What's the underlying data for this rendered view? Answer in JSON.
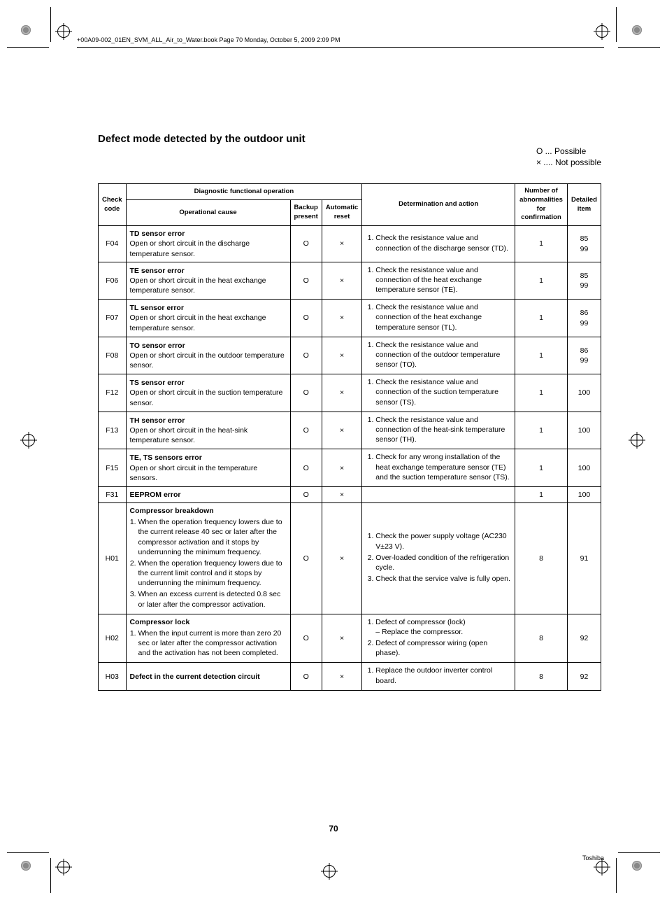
{
  "header_note": "+00A09-002_01EN_SVM_ALL_Air_to_Water.book  Page 70  Monday, October 5, 2009  2:09 PM",
  "title": "Defect mode detected by the outdoor unit",
  "legend": {
    "possible": "O ... Possible",
    "not_possible": "× .... Not possible"
  },
  "headers": {
    "check_code": "Check code",
    "diag": "Diagnostic functional operation",
    "op_cause": "Operational cause",
    "backup": "Backup present",
    "autoreset": "Automatic reset",
    "determination": "Determination and action",
    "abn": "Number of abnormalities for confirmation",
    "detailed": "Detailed item"
  },
  "rows": [
    {
      "code": "F04",
      "cause_title": "TD sensor error",
      "cause_body": "Open or short circuit in the discharge temperature sensor.",
      "backup": "O",
      "autoreset": "×",
      "actions": [
        "Check the resistance value and connection of the discharge sensor (TD)."
      ],
      "abn": "1",
      "item": "85\n99"
    },
    {
      "code": "F06",
      "cause_title": "TE sensor error",
      "cause_body": "Open or short circuit in the heat exchange temperature sensor.",
      "backup": "O",
      "autoreset": "×",
      "actions": [
        "Check the resistance value and connection of the heat exchange temperature sensor (TE)."
      ],
      "abn": "1",
      "item": "85\n99"
    },
    {
      "code": "F07",
      "cause_title": "TL sensor error",
      "cause_body": "Open or short circuit in the heat exchange temperature sensor.",
      "backup": "O",
      "autoreset": "×",
      "actions": [
        "Check the resistance value and connection of the heat exchange temperature sensor (TL)."
      ],
      "abn": "1",
      "item": "86\n99"
    },
    {
      "code": "F08",
      "cause_title": "TO sensor error",
      "cause_body": "Open or short circuit in the outdoor temperature sensor.",
      "backup": "O",
      "autoreset": "×",
      "actions": [
        "Check the resistance value and connection of the outdoor temperature sensor (TO)."
      ],
      "abn": "1",
      "item": "86\n99"
    },
    {
      "code": "F12",
      "cause_title": "TS sensor error",
      "cause_body": "Open or short circuit in the suction temperature sensor.",
      "backup": "O",
      "autoreset": "×",
      "actions": [
        "Check the resistance value and connection of the suction temperature sensor (TS)."
      ],
      "abn": "1",
      "item": "100"
    },
    {
      "code": "F13",
      "cause_title": "TH sensor error",
      "cause_body": "Open or short circuit in the heat-sink temperature sensor.",
      "backup": "O",
      "autoreset": "×",
      "actions": [
        "Check the resistance value and connection of the heat-sink temperature sensor (TH)."
      ],
      "abn": "1",
      "item": "100"
    },
    {
      "code": "F15",
      "cause_title": "TE, TS sensors error",
      "cause_body": "Open or short circuit in the temperature sensors.",
      "backup": "O",
      "autoreset": "×",
      "actions": [
        "Check for any wrong installation of the heat exchange temperature sensor (TE) and the suction temperature sensor (TS)."
      ],
      "abn": "1",
      "item": "100"
    },
    {
      "code": "F31",
      "cause_title": "EEPROM error",
      "cause_body": "",
      "backup": "O",
      "autoreset": "×",
      "actions": [],
      "abn": "1",
      "item": "100"
    },
    {
      "code": "H01",
      "cause_title": "Compressor breakdown",
      "cause_list": [
        "When the operation frequency lowers due to the current release 40 sec or later after the compressor activation and it stops by underrunning the minimum frequency.",
        "When the operation frequency lowers due to the current limit control and it stops by underrunning the minimum frequency.",
        "When an excess current is detected 0.8 sec or later after the compressor activation."
      ],
      "backup": "O",
      "autoreset": "×",
      "actions": [
        "Check the power supply voltage (AC230 V±23 V).",
        "Over-loaded condition of the refrigeration cycle.",
        "Check that the service valve is fully open."
      ],
      "abn": "8",
      "item": "91"
    },
    {
      "code": "H02",
      "cause_title": "Compressor lock",
      "cause_list": [
        "When the input current is more than zero 20 sec or later after the compressor activation and the activation has not been completed."
      ],
      "backup": "O",
      "autoreset": "×",
      "actions": [
        "Defect of compressor (lock)\n– Replace the compressor.",
        "Defect of compressor wiring (open phase)."
      ],
      "abn": "8",
      "item": "92"
    },
    {
      "code": "H03",
      "cause_title": "Defect in the current detection circuit",
      "cause_body": "",
      "backup": "O",
      "autoreset": "×",
      "actions": [
        "Replace the outdoor inverter control board."
      ],
      "abn": "8",
      "item": "92"
    }
  ],
  "page_number": "70",
  "footer_brand": "Toshiba"
}
